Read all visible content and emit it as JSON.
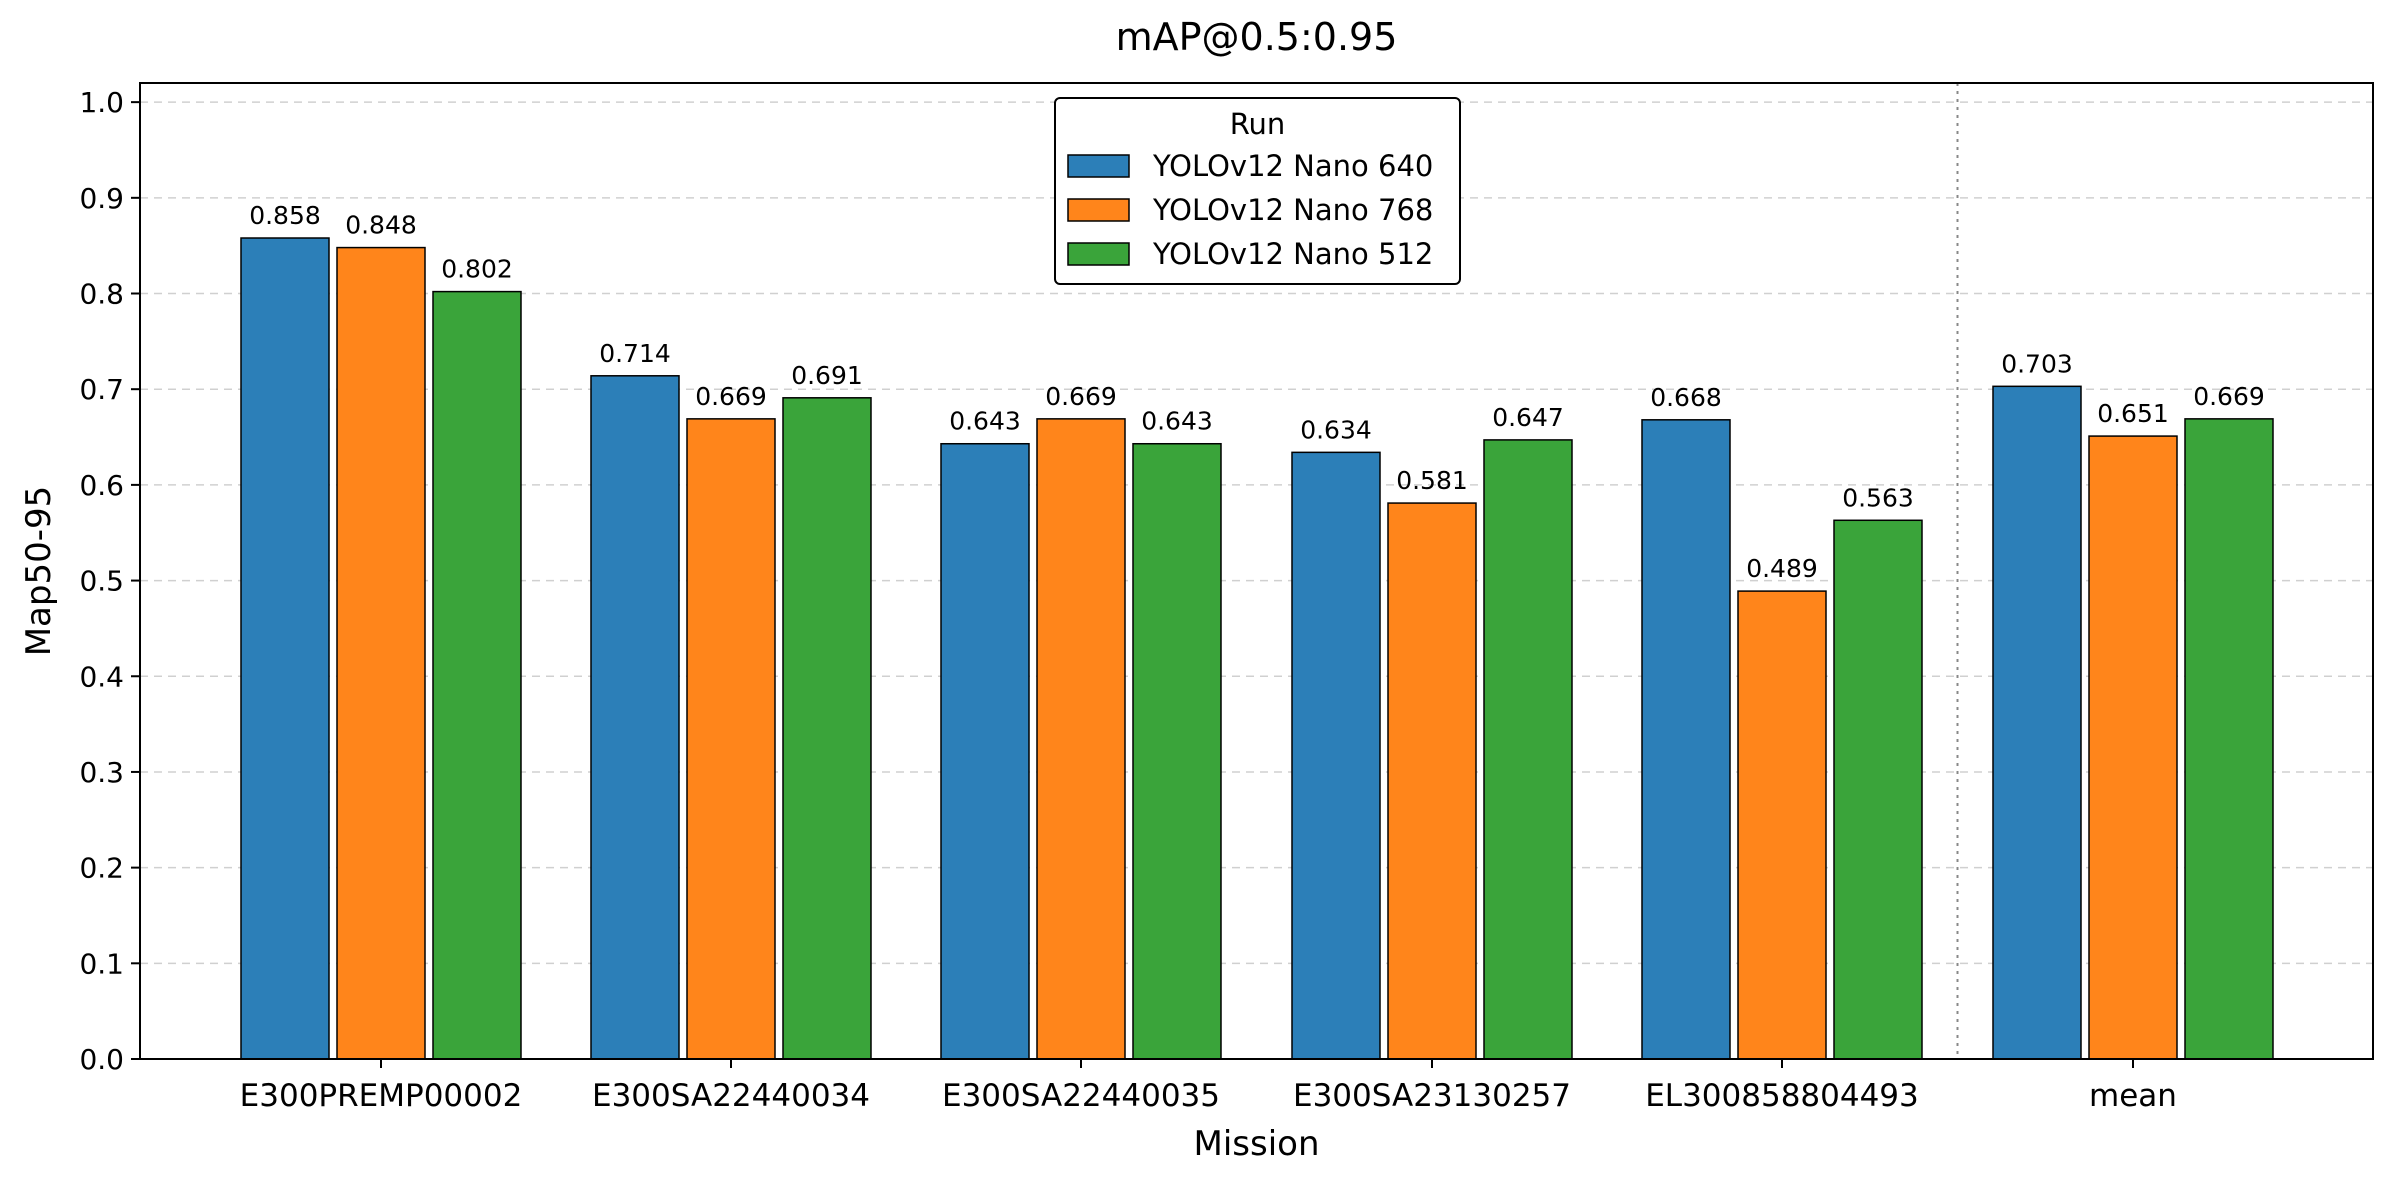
{
  "chart_data": {
    "type": "bar",
    "title": "mAP@0.5:0.95",
    "xlabel": "Mission",
    "ylabel": "Map50-95",
    "ylim": [
      0,
      1.02
    ],
    "yticks": [
      0.0,
      0.1,
      0.2,
      0.3,
      0.4,
      0.5,
      0.6,
      0.7,
      0.8,
      0.9,
      1.0
    ],
    "ytick_labels": [
      "0.0",
      "0.1",
      "0.2",
      "0.3",
      "0.4",
      "0.5",
      "0.6",
      "0.7",
      "0.8",
      "0.9",
      "1.0"
    ],
    "grid": "horizontal dashed",
    "categories": [
      "E300PREMP00002",
      "E300SA22440034",
      "E300SA22440035",
      "E300SA23130257",
      "EL300858804493",
      "mean"
    ],
    "separator_before": "mean",
    "legend": {
      "title": "Run",
      "placement": "upper center"
    },
    "series": [
      {
        "name": "YOLOv12 Nano 640",
        "color": "#2c7fb8",
        "values": [
          0.858,
          0.714,
          0.643,
          0.634,
          0.668,
          0.703
        ],
        "labels": [
          "0.858",
          "0.714",
          "0.643",
          "0.634",
          "0.668",
          "0.703"
        ]
      },
      {
        "name": "YOLOv12 Nano 768",
        "color": "#ff851b",
        "values": [
          0.848,
          0.669,
          0.669,
          0.581,
          0.489,
          0.651
        ],
        "labels": [
          "0.848",
          "0.669",
          "0.669",
          "0.581",
          "0.489",
          "0.651"
        ]
      },
      {
        "name": "YOLOv12 Nano 512",
        "color": "#3aa43a",
        "values": [
          0.802,
          0.691,
          0.643,
          0.647,
          0.563,
          0.669
        ],
        "labels": [
          "0.802",
          "0.691",
          "0.643",
          "0.647",
          "0.563",
          "0.669"
        ]
      }
    ]
  }
}
